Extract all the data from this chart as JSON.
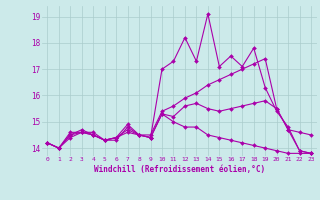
{
  "xlabel": "Windchill (Refroidissement éolien,°C)",
  "xlim": [
    -0.5,
    23.5
  ],
  "ylim": [
    13.7,
    19.4
  ],
  "yticks": [
    14,
    15,
    16,
    17,
    18,
    19
  ],
  "xticks": [
    0,
    1,
    2,
    3,
    4,
    5,
    6,
    7,
    8,
    9,
    10,
    11,
    12,
    13,
    14,
    15,
    16,
    17,
    18,
    19,
    20,
    21,
    22,
    23
  ],
  "bg_color": "#cceaea",
  "grid_color": "#aacccc",
  "line_color": "#aa00aa",
  "series": [
    [
      14.2,
      14.0,
      14.6,
      14.6,
      14.5,
      14.3,
      14.4,
      14.6,
      14.5,
      14.4,
      17.0,
      17.3,
      18.2,
      17.3,
      19.1,
      17.1,
      17.5,
      17.1,
      17.8,
      16.3,
      15.4,
      14.8,
      13.9,
      13.8
    ],
    [
      14.2,
      14.0,
      14.4,
      14.6,
      14.6,
      14.3,
      14.3,
      14.8,
      14.5,
      14.4,
      15.3,
      15.0,
      14.8,
      14.8,
      14.5,
      14.4,
      14.3,
      14.2,
      14.1,
      14.0,
      13.9,
      13.8,
      13.8,
      13.8
    ],
    [
      14.2,
      14.0,
      14.5,
      14.7,
      14.5,
      14.3,
      14.4,
      14.9,
      14.5,
      14.5,
      15.4,
      15.6,
      15.9,
      16.1,
      16.4,
      16.6,
      16.8,
      17.0,
      17.2,
      17.4,
      15.5,
      14.7,
      14.6,
      14.5
    ],
    [
      14.2,
      14.0,
      14.5,
      14.6,
      14.5,
      14.3,
      14.4,
      14.7,
      14.5,
      14.4,
      15.3,
      15.2,
      15.6,
      15.7,
      15.5,
      15.4,
      15.5,
      15.6,
      15.7,
      15.8,
      15.5,
      14.7,
      13.9,
      13.8
    ]
  ]
}
